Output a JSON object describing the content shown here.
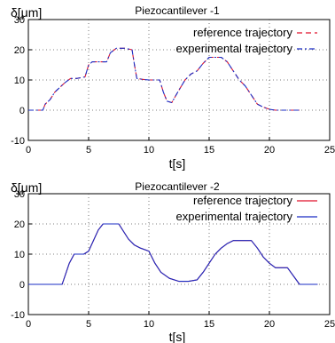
{
  "chart_data": [
    {
      "type": "line",
      "title": "Piezocantilever -1",
      "ylabel": "δ[μm]",
      "xlabel": "t[s]",
      "xlim": [
        0,
        25
      ],
      "ylim": [
        -10,
        30
      ],
      "xticks": [
        "0",
        "5",
        "10",
        "15",
        "20",
        "25"
      ],
      "yticks": [
        "-10",
        "0",
        "10",
        "20",
        "30"
      ],
      "grid": true,
      "legend_position": "top-right",
      "series": [
        {
          "name": "reference trajectory",
          "color": "#e0102a",
          "style": "dashed",
          "x": [
            0,
            1.2,
            1.4,
            1.8,
            2.2,
            3.0,
            3.5,
            4.0,
            4.7,
            5.0,
            5.3,
            6.5,
            6.8,
            7.3,
            8.0,
            8.6,
            8.8,
            9.0,
            9.5,
            10.0,
            10.9,
            11.2,
            11.5,
            11.9,
            12.4,
            13.0,
            13.5,
            14.0,
            14.5,
            15.0,
            16.0,
            16.5,
            17.0,
            17.5,
            18.0,
            18.5,
            19.0,
            19.5,
            20.0,
            20.5,
            22.5
          ],
          "values": [
            0,
            0,
            2,
            3.5,
            6,
            9,
            10.5,
            10.5,
            11,
            15,
            16,
            16,
            19,
            20.5,
            20.5,
            20,
            15,
            10.5,
            10.2,
            10,
            10,
            6,
            3,
            2.5,
            6,
            10,
            12,
            13,
            15.5,
            17.5,
            17.5,
            16,
            13,
            10,
            8,
            5,
            2,
            1,
            0.3,
            0,
            0
          ]
        },
        {
          "name": "experimental trajectory",
          "color": "#1a2cc4",
          "style": "dashdot",
          "x": [
            0,
            1.2,
            1.4,
            1.8,
            2.2,
            3.0,
            3.5,
            4.0,
            4.7,
            5.0,
            5.3,
            6.5,
            6.8,
            7.3,
            8.0,
            8.6,
            8.8,
            9.0,
            9.5,
            10.0,
            10.9,
            11.2,
            11.5,
            11.9,
            12.4,
            13.0,
            13.5,
            14.0,
            14.5,
            15.0,
            16.0,
            16.5,
            17.0,
            17.5,
            18.0,
            18.5,
            19.0,
            19.5,
            20.0,
            20.5,
            22.5
          ],
          "values": [
            0,
            0,
            2,
            3.5,
            6,
            9,
            10.5,
            10.5,
            11,
            15,
            16,
            16,
            19,
            20.5,
            20.5,
            20,
            15,
            10.5,
            10.2,
            10,
            10,
            6,
            3,
            2.5,
            6,
            10,
            12,
            13,
            15.5,
            17.5,
            17.5,
            16,
            13,
            10,
            8,
            5,
            2,
            1,
            0.3,
            0,
            0
          ]
        }
      ]
    },
    {
      "type": "line",
      "title": "Piezocantilever -2",
      "ylabel": "δ[μm]",
      "xlabel": "t[s]",
      "xlim": [
        0,
        25
      ],
      "ylim": [
        -10,
        30
      ],
      "xticks": [
        "0",
        "5",
        "10",
        "15",
        "20",
        "25"
      ],
      "yticks": [
        "-10",
        "0",
        "10",
        "20",
        "30"
      ],
      "grid": true,
      "legend_position": "top-right",
      "series": [
        {
          "name": "reference trajectory",
          "color": "#e0102a",
          "style": "solid",
          "x": [
            0,
            2.8,
            3.4,
            3.8,
            4.6,
            5.0,
            5.8,
            6.2,
            7.5,
            8.3,
            8.8,
            9.3,
            10.0,
            10.5,
            11.0,
            11.7,
            12.5,
            13.3,
            14.0,
            14.5,
            15.0,
            15.5,
            16.0,
            16.5,
            17.0,
            18.5,
            19.0,
            19.5,
            20.0,
            20.5,
            21.5,
            22.5,
            24.0
          ],
          "values": [
            0,
            0,
            7,
            10,
            10,
            11,
            18,
            20,
            20,
            15,
            13,
            12,
            11,
            7,
            4,
            2,
            1,
            1,
            1.5,
            4,
            7,
            10,
            12,
            13.5,
            14.5,
            14.5,
            12,
            9,
            7,
            5.5,
            5.5,
            0,
            0
          ]
        },
        {
          "name": "experimental trajectory",
          "color": "#1a2cc4",
          "style": "solid",
          "x": [
            0,
            2.8,
            3.4,
            3.8,
            4.6,
            5.0,
            5.8,
            6.2,
            7.5,
            8.3,
            8.8,
            9.3,
            10.0,
            10.5,
            11.0,
            11.7,
            12.5,
            13.3,
            14.0,
            14.5,
            15.0,
            15.5,
            16.0,
            16.5,
            17.0,
            18.5,
            19.0,
            19.5,
            20.0,
            20.5,
            21.5,
            22.5,
            24.0
          ],
          "values": [
            0,
            0,
            7,
            10,
            10,
            11,
            18,
            20,
            20,
            15,
            13,
            12,
            11,
            7,
            4,
            2,
            1,
            1,
            1.5,
            4,
            7,
            10,
            12,
            13.5,
            14.5,
            14.5,
            12,
            9,
            7,
            5.5,
            5.5,
            0,
            0
          ]
        }
      ]
    }
  ]
}
